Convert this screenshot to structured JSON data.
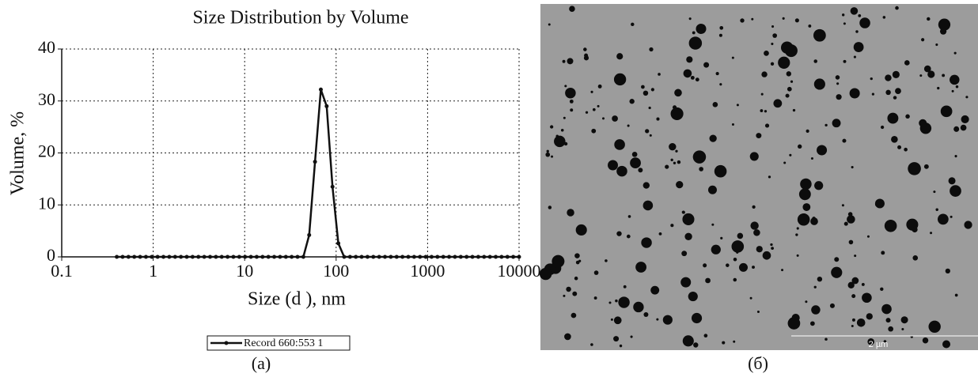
{
  "chart_data": {
    "type": "line",
    "title": "Size Distribution by Volume",
    "x_label": "Size (d ), nm",
    "y_label": "Volume, %",
    "x_scale": "log",
    "grid": true,
    "xlim": [
      0.1,
      10000
    ],
    "xticks": [
      0.1,
      1,
      10,
      100,
      1000,
      10000
    ],
    "ylim": [
      0,
      40
    ],
    "yticks": [
      0,
      10,
      20,
      30,
      40
    ],
    "x": [
      0.4,
      0.4632,
      0.5365,
      0.6213,
      0.7195,
      0.8332,
      0.9649,
      1.117,
      1.294,
      1.499,
      1.736,
      2.01,
      2.328,
      2.696,
      3.122,
      3.615,
      4.187,
      4.849,
      5.615,
      6.503,
      7.531,
      8.721,
      10.1,
      11.7,
      13.54,
      15.69,
      18.17,
      21.04,
      24.36,
      28.21,
      32.67,
      37.84,
      43.82,
      50.75,
      58.77,
      68.06,
      78.82,
      91.28,
      105.7,
      122.4,
      141.8,
      164.2,
      190.1,
      220.2,
      255.0,
      295.3,
      342.0,
      396.1,
      458.7,
      531.2,
      615.1,
      712.4,
      825.0,
      955.4,
      1106,
      1281,
      1484,
      1718,
      1990,
      2305,
      2669,
      3091,
      3580,
      4145,
      4801,
      5560,
      6439,
      7456,
      8635,
      10000
    ],
    "series": [
      {
        "name": "Record 660:553 1",
        "color": "#111111",
        "values": [
          0,
          0,
          0,
          0,
          0,
          0,
          0,
          0,
          0,
          0,
          0,
          0,
          0,
          0,
          0,
          0,
          0,
          0,
          0,
          0,
          0,
          0,
          0,
          0,
          0,
          0,
          0,
          0,
          0,
          0,
          0,
          0,
          0,
          4.2,
          18.3,
          32.2,
          29.0,
          13.5,
          2.6,
          0,
          0,
          0,
          0,
          0,
          0,
          0,
          0,
          0,
          0,
          0,
          0,
          0,
          0,
          0,
          0,
          0,
          0,
          0,
          0,
          0,
          0,
          0,
          0,
          0,
          0,
          0,
          0,
          0,
          0,
          0
        ]
      }
    ]
  },
  "micrograph": {
    "scale_bar_label": "2 µm"
  },
  "captions": [
    "(a)",
    "(б)"
  ]
}
